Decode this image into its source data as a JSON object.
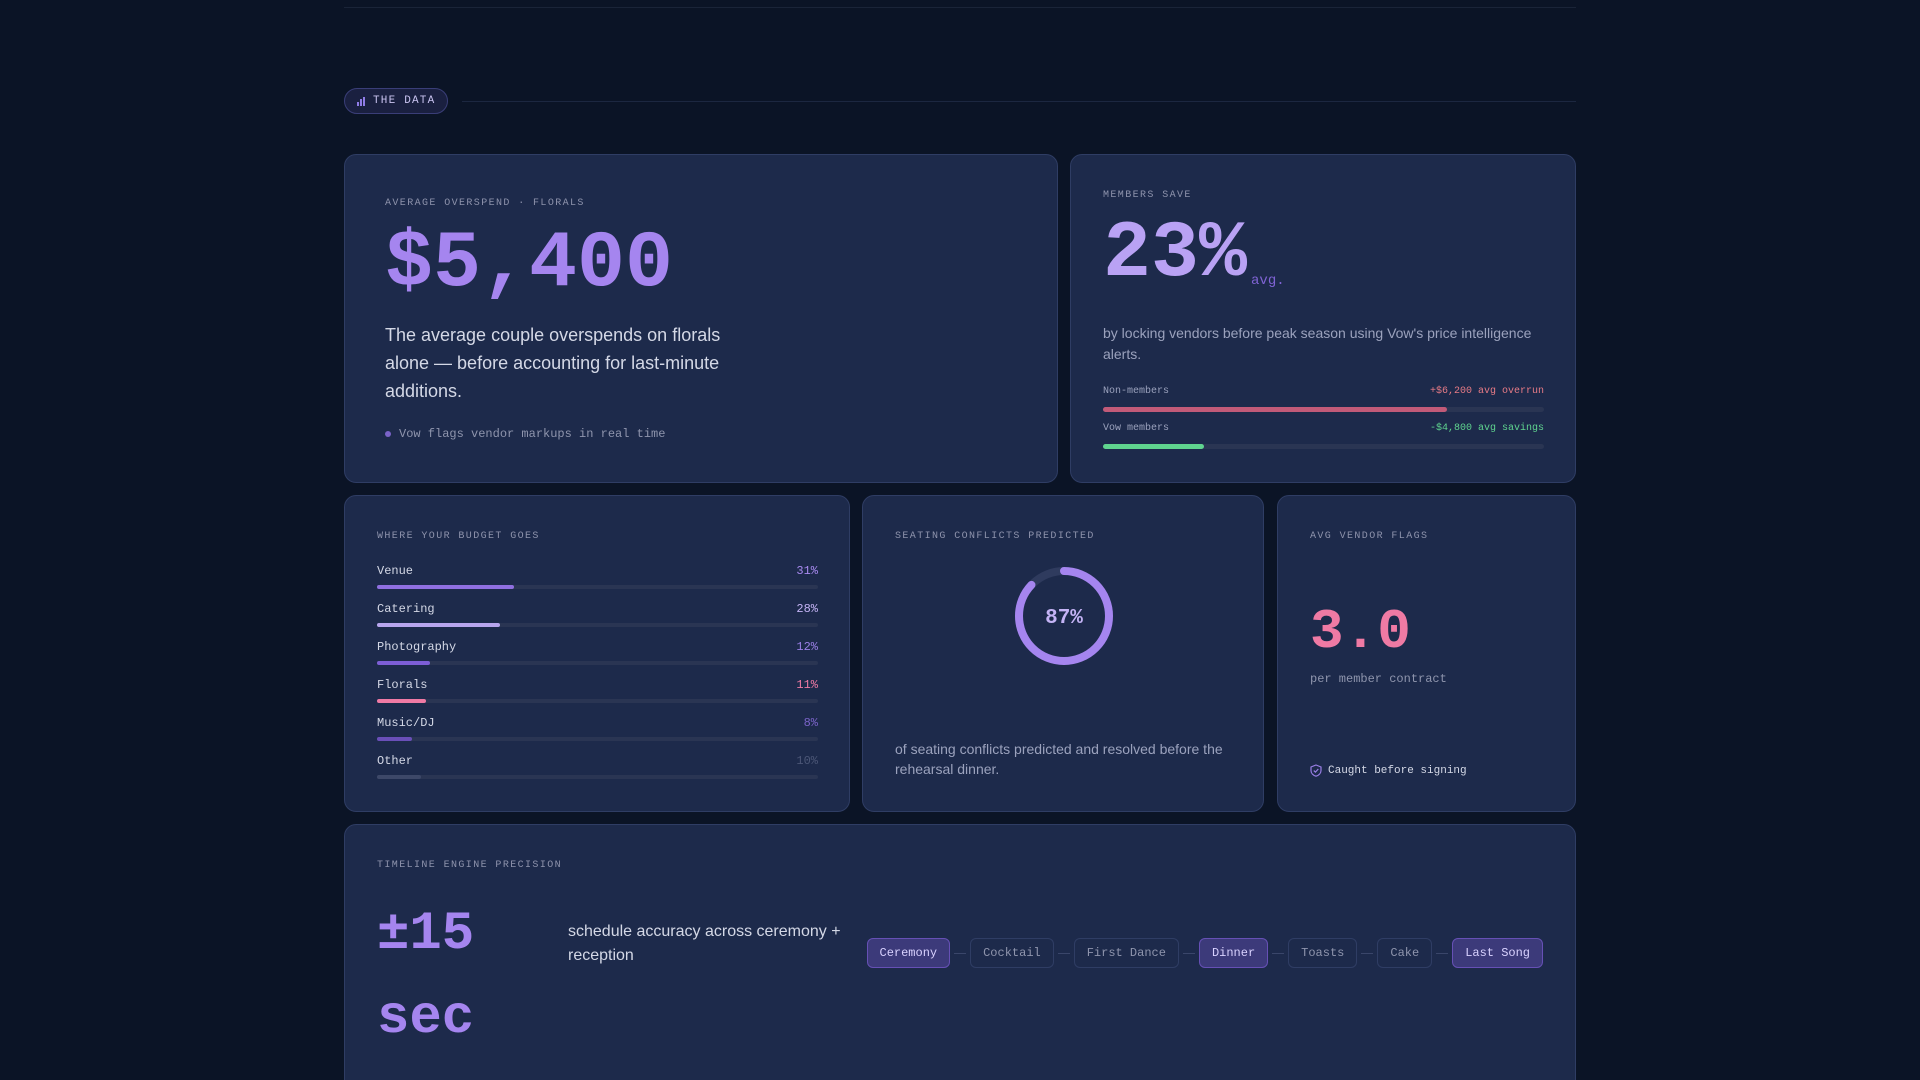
{
  "section": {
    "title": "THE DATA"
  },
  "overspend": {
    "label": "AVERAGE OVERSPEND · FLORALS",
    "value": "$5,400",
    "description": "The average couple overspends on florals alone — before accounting for last-minute additions.",
    "footnote": "Vow flags vendor markups in real time"
  },
  "members": {
    "label": "MEMBERS SAVE",
    "value": "23%",
    "unit": "avg.",
    "description": "by locking vendors before peak season using Vow's price intelligence alerts.",
    "comparison": [
      {
        "name": "Non-members",
        "note": "+$6,200 avg overrun",
        "level": 0.78,
        "color": "#c25a78",
        "note_color": "#e77b86"
      },
      {
        "name": "Vow members",
        "note": "-$4,800 avg savings",
        "level": 0.23,
        "color": "#5fd48f",
        "note_color": "#5fd48f"
      }
    ]
  },
  "budget": {
    "label": "WHERE YOUR BUDGET GOES",
    "items": [
      {
        "name": "Venue",
        "percent": "31%",
        "value": 31,
        "color": "#8f6fe0",
        "pct_color": "#a88af0"
      },
      {
        "name": "Catering",
        "percent": "28%",
        "value": 28,
        "color": "#b8a6ee",
        "pct_color": "#c4b3f5"
      },
      {
        "name": "Photography",
        "percent": "12%",
        "value": 12,
        "color": "#7d5ed6",
        "pct_color": "#9a7fe6"
      },
      {
        "name": "Florals",
        "percent": "11%",
        "value": 11,
        "color": "#ef7aa4",
        "pct_color": "#ef7aa4"
      },
      {
        "name": "Music/DJ",
        "percent": "8%",
        "value": 8,
        "color": "#6a4fb8",
        "pct_color": "#7a63c8"
      },
      {
        "name": "Other",
        "percent": "10%",
        "value": 10,
        "color": "#3d4868",
        "pct_color": "#4b5676"
      }
    ]
  },
  "seating": {
    "label": "SEATING CONFLICTS PREDICTED",
    "value": "87%",
    "fraction": 0.87,
    "ring_color": "#a585ef",
    "description": "of seating conflicts predicted and resolved before the rehearsal dinner."
  },
  "flags": {
    "label": "AVG VENDOR FLAGS",
    "value": "3.0",
    "subtitle": "per member contract",
    "footnote": "Caught before signing"
  },
  "timeline": {
    "label": "TIMELINE ENGINE PRECISION",
    "value": "±15 sec",
    "description": "schedule accuracy across ceremony + reception",
    "steps": [
      {
        "label": "Ceremony",
        "active": true
      },
      {
        "label": "Cocktail",
        "active": false
      },
      {
        "label": "First Dance",
        "active": false
      },
      {
        "label": "Dinner",
        "active": true
      },
      {
        "label": "Toasts",
        "active": false
      },
      {
        "label": "Cake",
        "active": false
      },
      {
        "label": "Last Song",
        "active": true
      }
    ]
  }
}
